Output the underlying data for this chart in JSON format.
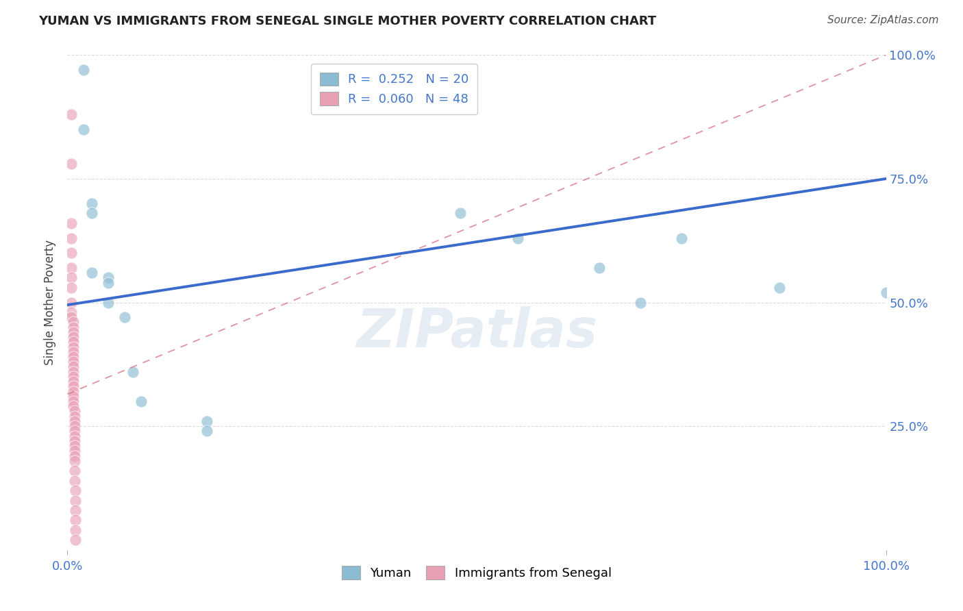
{
  "title": "YUMAN VS IMMIGRANTS FROM SENEGAL SINGLE MOTHER POVERTY CORRELATION CHART",
  "source": "Source: ZipAtlas.com",
  "ylabel": "Single Mother Poverty",
  "watermark": "ZIPatlas",
  "legend_line1": "R =  0.252   N = 20",
  "legend_line2": "R =  0.060   N = 48",
  "blue_scatter_x": [
    0.02,
    0.02,
    0.03,
    0.03,
    0.03,
    0.05,
    0.05,
    0.05,
    0.07,
    0.08,
    0.09,
    0.17,
    0.17,
    0.48,
    0.55,
    0.65,
    0.7,
    0.75,
    0.87,
    1.0
  ],
  "blue_scatter_y": [
    0.97,
    0.85,
    0.7,
    0.68,
    0.56,
    0.55,
    0.54,
    0.5,
    0.47,
    0.36,
    0.3,
    0.26,
    0.24,
    0.68,
    0.63,
    0.57,
    0.5,
    0.63,
    0.53,
    0.52
  ],
  "pink_scatter_x": [
    0.005,
    0.005,
    0.005,
    0.005,
    0.005,
    0.005,
    0.005,
    0.005,
    0.005,
    0.005,
    0.005,
    0.007,
    0.007,
    0.007,
    0.007,
    0.007,
    0.007,
    0.007,
    0.007,
    0.007,
    0.007,
    0.007,
    0.007,
    0.007,
    0.007,
    0.007,
    0.007,
    0.007,
    0.007,
    0.009,
    0.009,
    0.009,
    0.009,
    0.009,
    0.009,
    0.009,
    0.009,
    0.009,
    0.009,
    0.009,
    0.009,
    0.009,
    0.01,
    0.01,
    0.01,
    0.01,
    0.01,
    0.01
  ],
  "pink_scatter_y": [
    0.88,
    0.78,
    0.66,
    0.63,
    0.6,
    0.57,
    0.55,
    0.53,
    0.5,
    0.48,
    0.47,
    0.46,
    0.45,
    0.44,
    0.43,
    0.42,
    0.41,
    0.4,
    0.39,
    0.38,
    0.37,
    0.36,
    0.35,
    0.34,
    0.33,
    0.32,
    0.31,
    0.3,
    0.29,
    0.28,
    0.27,
    0.26,
    0.25,
    0.24,
    0.23,
    0.22,
    0.21,
    0.2,
    0.19,
    0.18,
    0.16,
    0.14,
    0.12,
    0.1,
    0.08,
    0.06,
    0.04,
    0.02
  ],
  "blue_line_x": [
    0.0,
    1.0
  ],
  "blue_line_y": [
    0.495,
    0.75
  ],
  "pink_line_x": [
    0.0,
    1.0
  ],
  "pink_line_y": [
    0.315,
    1.0
  ],
  "xlim": [
    0.0,
    1.0
  ],
  "ylim": [
    0.0,
    1.0
  ],
  "xtick_positions": [
    0.0,
    1.0
  ],
  "xtick_labels": [
    "0.0%",
    "100.0%"
  ],
  "ytick_positions": [
    0.25,
    0.5,
    0.75,
    1.0
  ],
  "ytick_labels": [
    "25.0%",
    "50.0%",
    "75.0%",
    "100.0%"
  ],
  "blue_color": "#8bbcd4",
  "pink_color": "#e8a0b4",
  "blue_line_color": "#3a6bcc",
  "pink_line_color": "#d47080",
  "background_color": "#ffffff",
  "grid_color": "#cccccc",
  "title_color": "#222222",
  "tick_color": "#4477cc",
  "source_color": "#555555",
  "ylabel_color": "#444444"
}
